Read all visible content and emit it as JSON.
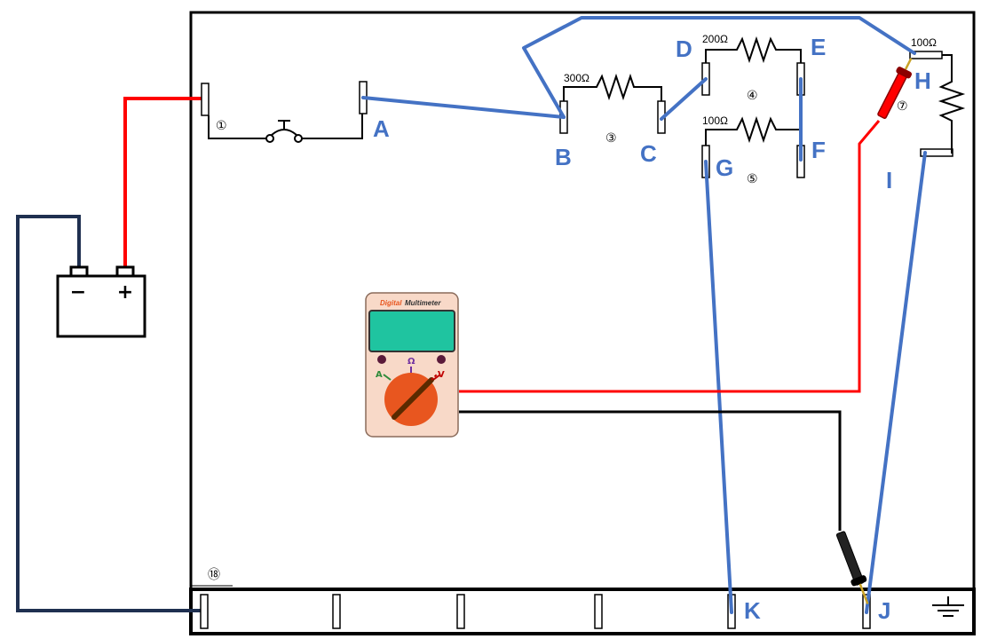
{
  "labels": {
    "A": "A",
    "B": "B",
    "C": "C",
    "D": "D",
    "E": "E",
    "F": "F",
    "G": "G",
    "H": "H",
    "I": "I",
    "J": "J",
    "K": "K"
  },
  "numbers": {
    "n1": "①",
    "n3": "③",
    "n4": "④",
    "n5": "⑤",
    "n7": "⑦",
    "n18": "⑱"
  },
  "resistors": {
    "r3": "300Ω",
    "r4": "200Ω",
    "r5": "100Ω",
    "r7": "100Ω"
  },
  "battery": {
    "minus": "−",
    "plus": "+"
  },
  "multimeter": {
    "title_a": "Digital",
    "title_b": "Multimeter",
    "mode_a": "A",
    "mode_ohm": "Ω",
    "mode_v": "V"
  },
  "colors": {
    "accent_blue": "#4472C4",
    "wire_red": "#FF0000",
    "wire_navy": "#1F3050",
    "probe_dark_red": "#8B0000",
    "dial_orange": "#E8561F",
    "display_teal": "#1FC4A0",
    "meter_body": "#F8D9C8"
  },
  "icons": {
    "ground": "ground-symbol-icon",
    "switch": "push-switch-icon",
    "battery": "battery-icon"
  }
}
